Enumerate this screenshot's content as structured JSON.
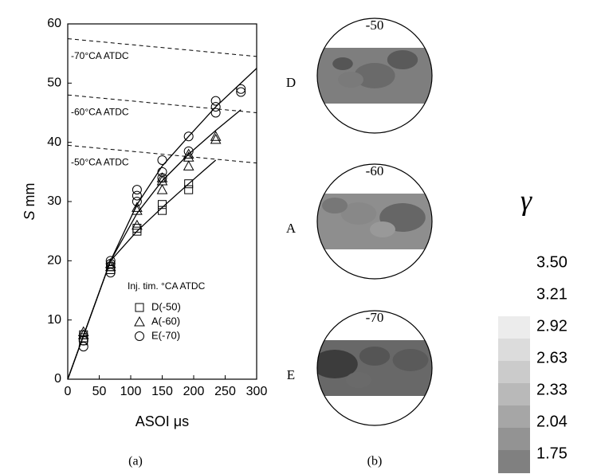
{
  "chart_data": {
    "type": "scatter",
    "xlabel": "ASOI μs",
    "ylabel": {
      "symbol": "S",
      "unit": "mm"
    },
    "xlim": [
      0,
      300
    ],
    "xticks": [
      0,
      50,
      100,
      150,
      200,
      250,
      300
    ],
    "ylim": [
      0,
      60
    ],
    "yticks": [
      0,
      10,
      20,
      30,
      40,
      50,
      60
    ],
    "legend_title": "Inj. tim. °CA ATDC",
    "series": [
      {
        "name": "D(-50)",
        "marker": "square",
        "color": "#000",
        "x": [
          25,
          25,
          25,
          68,
          68,
          110,
          110,
          150,
          150,
          192,
          192
        ],
        "y": [
          6.5,
          7,
          7.5,
          18.5,
          19,
          25,
          25.5,
          28.5,
          29.5,
          32,
          33
        ],
        "curve": {
          "x": [
            0,
            68,
            110,
            150,
            192,
            235
          ],
          "y": [
            0,
            20,
            25,
            29,
            33,
            37
          ]
        }
      },
      {
        "name": "A(-60)",
        "marker": "triangle",
        "color": "#000",
        "x": [
          25,
          25,
          68,
          68,
          110,
          110,
          110,
          150,
          150,
          150,
          192,
          192,
          192,
          235,
          235
        ],
        "y": [
          7.5,
          8,
          19,
          19.5,
          26,
          28.5,
          29,
          32,
          33.5,
          34,
          36,
          37.5,
          38,
          40.5,
          41
        ],
        "curve": {
          "x": [
            0,
            68,
            110,
            150,
            192,
            235,
            275
          ],
          "y": [
            0,
            20,
            28,
            33.5,
            38,
            42,
            45.5
          ]
        }
      },
      {
        "name": "E(-70)",
        "marker": "circle",
        "color": "#000",
        "x": [
          25,
          25,
          68,
          68,
          68,
          110,
          110,
          110,
          150,
          150,
          150,
          192,
          192,
          235,
          235,
          235,
          275,
          275
        ],
        "y": [
          5.5,
          6.5,
          18,
          19.5,
          20,
          30,
          31,
          32,
          34,
          35,
          37,
          38.5,
          41,
          45,
          46,
          47,
          48.5,
          49
        ],
        "curve": {
          "x": [
            0,
            68,
            110,
            150,
            192,
            235,
            300
          ],
          "y": [
            0,
            20,
            29.5,
            36,
            41,
            46,
            52.5
          ]
        }
      }
    ],
    "guides": [
      {
        "label": "-70°CA ATDC",
        "x": [
          0,
          300
        ],
        "y": [
          57.5,
          54.5
        ]
      },
      {
        "label": "-60°CA ATDC",
        "x": [
          0,
          300
        ],
        "y": [
          48,
          45
        ]
      },
      {
        "label": "-50°CA ATDC",
        "x": [
          0,
          300
        ],
        "y": [
          39.5,
          36.5
        ]
      }
    ],
    "caption": "(a)"
  },
  "panel_b": {
    "caption": "(b)",
    "images": [
      {
        "title": "-50",
        "label": "D"
      },
      {
        "title": "-60",
        "label": "A"
      },
      {
        "title": "-70",
        "label": "E"
      }
    ]
  },
  "colorbar": {
    "symbol": "γ",
    "ticks": [
      {
        "value": 3.5,
        "label": "3.50"
      },
      {
        "value": 3.21,
        "label": "3.21"
      },
      {
        "value": 2.92,
        "label": "2.92"
      },
      {
        "value": 2.63,
        "label": "2.63"
      },
      {
        "value": 2.33,
        "label": "2.33"
      },
      {
        "value": 2.04,
        "label": "2.04"
      },
      {
        "value": 1.75,
        "label": "1.75"
      }
    ],
    "colors": [
      "#ececec",
      "#dcdcdc",
      "#cbcbcb",
      "#b9b9b9",
      "#a6a6a6",
      "#939393",
      "#808080"
    ]
  }
}
